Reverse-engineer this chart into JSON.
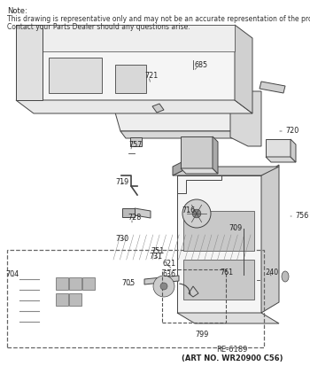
{
  "background_color": "#ffffff",
  "note_line1": "Note:",
  "note_line2": "This drawing is representative only and may not be an accurate representation of the product.",
  "note_line3": "Contact your Parts Dealer should any questions arise.",
  "bottom_ref1": "RE-6189",
  "bottom_ref2": "(ART NO. WR20900 C56)",
  "fig_width": 3.5,
  "fig_height": 4.13,
  "dpi": 100
}
